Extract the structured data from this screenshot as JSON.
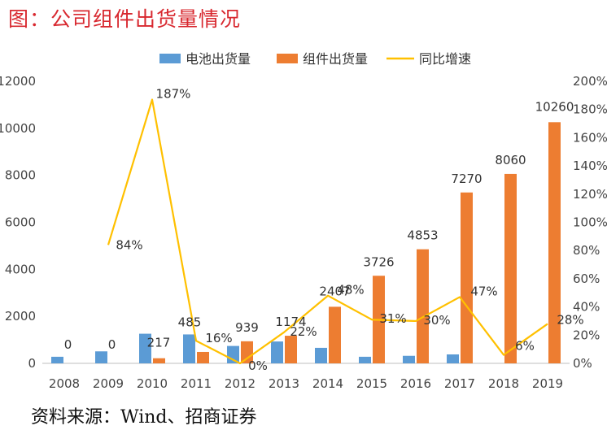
{
  "page": {
    "title": "图：公司组件出货量情况",
    "source": "资料来源：Wind、招商证券"
  },
  "chart_data": {
    "type": "bar",
    "categories": [
      "2008",
      "2009",
      "2010",
      "2011",
      "2012",
      "2013",
      "2014",
      "2015",
      "2016",
      "2017",
      "2018",
      "2019"
    ],
    "series": [
      {
        "name": "电池出货量",
        "type": "bar",
        "axis": "left",
        "color": "#5b9bd5",
        "values": [
          280,
          510,
          1260,
          1230,
          740,
          930,
          660,
          280,
          320,
          380,
          0,
          0
        ]
      },
      {
        "name": "组件出货量",
        "type": "bar",
        "axis": "left",
        "color": "#ed7d31",
        "values": [
          0,
          0,
          217,
          485,
          939,
          1174,
          2407,
          3726,
          4853,
          7270,
          8060,
          10260
        ]
      },
      {
        "name": "同比增速",
        "type": "line",
        "axis": "right",
        "color": "#ffc000",
        "values": [
          null,
          84,
          187,
          16,
          0,
          22,
          48,
          31,
          30,
          47,
          6,
          28
        ]
      }
    ],
    "bar_labels": [
      "0",
      "0",
      "217",
      "485",
      "939",
      "1174",
      "2407",
      "3726",
      "4853",
      "7270",
      "8060",
      "10260"
    ],
    "line_labels": [
      "",
      "84%",
      "187%",
      "16%",
      "0%",
      "22%",
      "48%",
      "31%",
      "30%",
      "47%",
      "6%",
      "28%"
    ],
    "y_left": {
      "min": 0,
      "max": 12000,
      "step": 2000,
      "ticks": [
        "0",
        "2000",
        "4000",
        "6000",
        "8000",
        "10000",
        "12000"
      ]
    },
    "y_right": {
      "min": 0,
      "max": 200,
      "step": 20,
      "ticks": [
        "0%",
        "20%",
        "40%",
        "60%",
        "80%",
        "100%",
        "120%",
        "140%",
        "160%",
        "180%",
        "200%"
      ]
    },
    "legend": {
      "position": "top-center"
    },
    "grid": false
  }
}
